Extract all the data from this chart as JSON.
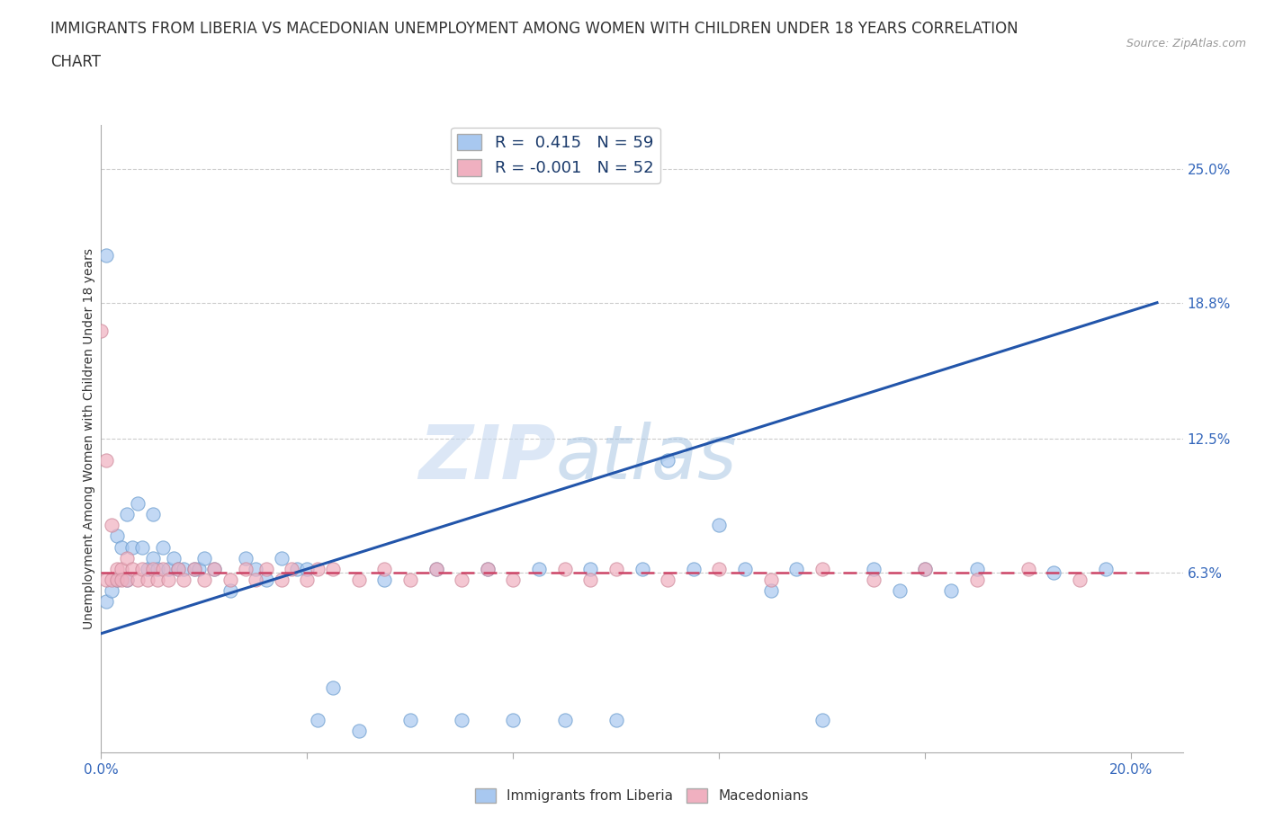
{
  "title_line1": "IMMIGRANTS FROM LIBERIA VS MACEDONIAN UNEMPLOYMENT AMONG WOMEN WITH CHILDREN UNDER 18 YEARS CORRELATION",
  "title_line2": "CHART",
  "source": "Source: ZipAtlas.com",
  "ylabel": "Unemployment Among Women with Children Under 18 years",
  "xlim": [
    0.0,
    0.21
  ],
  "ylim": [
    -0.02,
    0.27
  ],
  "xticks": [
    0.0,
    0.04,
    0.08,
    0.12,
    0.16,
    0.2
  ],
  "xticklabels": [
    "0.0%",
    "",
    "",
    "",
    "",
    "20.0%"
  ],
  "ytick_positions": [
    0.063,
    0.125,
    0.188,
    0.25
  ],
  "ytick_labels": [
    "6.3%",
    "12.5%",
    "18.8%",
    "25.0%"
  ],
  "hgrid_values": [
    0.063,
    0.125,
    0.188,
    0.25
  ],
  "blue_color": "#a8c8f0",
  "pink_color": "#f0b0c0",
  "blue_edge_color": "#6699cc",
  "pink_edge_color": "#cc8899",
  "blue_line_color": "#2255aa",
  "pink_line_color": "#cc4466",
  "legend_R_blue": "0.415",
  "legend_N_blue": "59",
  "legend_R_pink": "-0.001",
  "legend_N_pink": "52",
  "watermark": "ZIPatlas",
  "blue_scatter_x": [
    0.001,
    0.001,
    0.002,
    0.003,
    0.003,
    0.004,
    0.005,
    0.005,
    0.006,
    0.007,
    0.008,
    0.009,
    0.01,
    0.01,
    0.011,
    0.012,
    0.013,
    0.014,
    0.015,
    0.016,
    0.018,
    0.019,
    0.02,
    0.022,
    0.025,
    0.028,
    0.03,
    0.032,
    0.035,
    0.038,
    0.04,
    0.042,
    0.045,
    0.05,
    0.055,
    0.06,
    0.065,
    0.07,
    0.075,
    0.08,
    0.085,
    0.09,
    0.095,
    0.1,
    0.105,
    0.11,
    0.115,
    0.12,
    0.125,
    0.13,
    0.135,
    0.14,
    0.15,
    0.155,
    0.16,
    0.165,
    0.17,
    0.185,
    0.195
  ],
  "blue_scatter_y": [
    0.21,
    0.05,
    0.055,
    0.08,
    0.06,
    0.075,
    0.09,
    0.06,
    0.075,
    0.095,
    0.075,
    0.065,
    0.07,
    0.09,
    0.065,
    0.075,
    0.065,
    0.07,
    0.065,
    0.065,
    0.065,
    0.065,
    0.07,
    0.065,
    0.055,
    0.07,
    0.065,
    0.06,
    0.07,
    0.065,
    0.065,
    -0.005,
    0.01,
    -0.01,
    0.06,
    -0.005,
    0.065,
    -0.005,
    0.065,
    -0.005,
    0.065,
    -0.005,
    0.065,
    -0.005,
    0.065,
    0.115,
    0.065,
    0.085,
    0.065,
    0.055,
    0.065,
    -0.005,
    0.065,
    0.055,
    0.065,
    0.055,
    0.065,
    0.063,
    0.065
  ],
  "pink_scatter_x": [
    0.0,
    0.001,
    0.001,
    0.002,
    0.002,
    0.003,
    0.003,
    0.004,
    0.004,
    0.005,
    0.005,
    0.006,
    0.007,
    0.008,
    0.009,
    0.01,
    0.011,
    0.012,
    0.013,
    0.015,
    0.016,
    0.018,
    0.02,
    0.022,
    0.025,
    0.028,
    0.03,
    0.032,
    0.035,
    0.037,
    0.04,
    0.042,
    0.045,
    0.05,
    0.055,
    0.06,
    0.065,
    0.07,
    0.075,
    0.08,
    0.09,
    0.095,
    0.1,
    0.11,
    0.12,
    0.13,
    0.14,
    0.15,
    0.16,
    0.17,
    0.18,
    0.19
  ],
  "pink_scatter_y": [
    0.175,
    0.115,
    0.06,
    0.085,
    0.06,
    0.065,
    0.06,
    0.065,
    0.06,
    0.07,
    0.06,
    0.065,
    0.06,
    0.065,
    0.06,
    0.065,
    0.06,
    0.065,
    0.06,
    0.065,
    0.06,
    0.065,
    0.06,
    0.065,
    0.06,
    0.065,
    0.06,
    0.065,
    0.06,
    0.065,
    0.06,
    0.065,
    0.065,
    0.06,
    0.065,
    0.06,
    0.065,
    0.06,
    0.065,
    0.06,
    0.065,
    0.06,
    0.065,
    0.06,
    0.065,
    0.06,
    0.065,
    0.06,
    0.065,
    0.06,
    0.065,
    0.06
  ],
  "blue_trend_x": [
    0.0,
    0.205
  ],
  "blue_trend_y": [
    0.035,
    0.188
  ],
  "pink_trend_x": [
    0.0,
    0.205
  ],
  "pink_trend_y": [
    0.063,
    0.063
  ],
  "background_color": "#ffffff",
  "title_fontsize": 12,
  "axis_label_fontsize": 10,
  "tick_fontsize": 11
}
